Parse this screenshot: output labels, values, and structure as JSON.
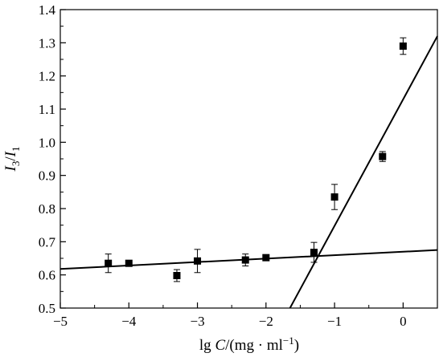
{
  "chart_data": {
    "type": "scatter",
    "xlim": [
      -5,
      0.5
    ],
    "ylim": [
      0.5,
      1.4
    ],
    "xticks": [
      -5,
      -4,
      -3,
      -2,
      -1,
      0
    ],
    "xtick_labels": [
      "−5",
      "−4",
      "−3",
      "−2",
      "−1",
      "0"
    ],
    "yticks": [
      0.5,
      0.6,
      0.7,
      0.8,
      0.9,
      1.0,
      1.1,
      1.2,
      1.3,
      1.4
    ],
    "ytick_labels": [
      "0.5",
      "0.6",
      "0.7",
      "0.8",
      "0.9",
      "1.0",
      "1.1",
      "1.2",
      "1.3",
      "1.4"
    ],
    "xlabel": {
      "prefix": "lg ",
      "var": "C",
      "unit": "/(mg · ml",
      "exp": "−1",
      "close": ")"
    },
    "ylabel": {
      "num": "I",
      "num_sub": "3",
      "slash": "/",
      "den": "I",
      "den_sub": "1"
    },
    "grid": false,
    "series": [
      {
        "marker": "square",
        "color": "#000000",
        "points": [
          {
            "x": -4.3,
            "y": 0.635,
            "err": 0.028
          },
          {
            "x": -4.0,
            "y": 0.635,
            "err": 0.0
          },
          {
            "x": -3.3,
            "y": 0.598,
            "err": 0.018
          },
          {
            "x": -3.0,
            "y": 0.642,
            "err": 0.035
          },
          {
            "x": -2.3,
            "y": 0.645,
            "err": 0.018
          },
          {
            "x": -2.0,
            "y": 0.652,
            "err": 0.0
          },
          {
            "x": -1.3,
            "y": 0.668,
            "err": 0.03
          },
          {
            "x": -1.0,
            "y": 0.835,
            "err": 0.038
          },
          {
            "x": -0.3,
            "y": 0.957,
            "err": 0.015
          },
          {
            "x": 0.0,
            "y": 1.29,
            "err": 0.025
          }
        ]
      }
    ],
    "fit_lines": [
      {
        "x1": -5.0,
        "y1": 0.618,
        "x2": 0.5,
        "y2": 0.675
      },
      {
        "x1": -1.65,
        "y1": 0.5,
        "x2": 0.5,
        "y2": 1.32
      }
    ]
  }
}
